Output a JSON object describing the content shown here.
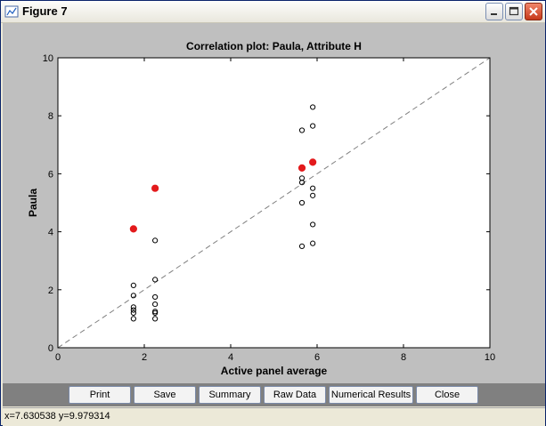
{
  "window": {
    "title": "Figure 7",
    "minimize_label": "minimize",
    "maximize_label": "maximize",
    "close_label": "close"
  },
  "toolbar": {
    "buttons": [
      {
        "label": "Print"
      },
      {
        "label": "Save"
      },
      {
        "label": "Summary"
      },
      {
        "label": "Raw Data"
      },
      {
        "label": "Numerical Results"
      },
      {
        "label": "Close"
      }
    ]
  },
  "status": {
    "coords": "x=7.630538  y=9.979314"
  },
  "chart_data": {
    "type": "scatter",
    "title": "Correlation plot: Paula, Attribute H",
    "xlabel": "Active panel average",
    "ylabel": "Paula",
    "xlim": [
      0,
      10
    ],
    "ylim": [
      0,
      10
    ],
    "xticks": [
      0,
      2,
      4,
      6,
      8,
      10
    ],
    "yticks": [
      0,
      2,
      4,
      6,
      8,
      10
    ],
    "grid": false,
    "diagonal": {
      "from": [
        0,
        0
      ],
      "to": [
        10,
        10
      ],
      "style": "dashed",
      "color": "#808080"
    },
    "series": [
      {
        "marker": "open-circle",
        "color": "#000000",
        "points": [
          [
            1.75,
            2.15
          ],
          [
            1.75,
            1.8
          ],
          [
            1.75,
            1.4
          ],
          [
            1.75,
            1.3
          ],
          [
            1.75,
            1.2
          ],
          [
            1.75,
            1.0
          ],
          [
            2.25,
            3.7
          ],
          [
            2.25,
            2.35
          ],
          [
            2.25,
            1.75
          ],
          [
            2.25,
            1.5
          ],
          [
            2.25,
            1.25
          ],
          [
            2.25,
            1.2
          ],
          [
            2.25,
            1.0
          ],
          [
            5.65,
            7.5
          ],
          [
            5.65,
            5.85
          ],
          [
            5.65,
            5.7
          ],
          [
            5.65,
            5.0
          ],
          [
            5.65,
            3.5
          ],
          [
            5.9,
            8.3
          ],
          [
            5.9,
            7.65
          ],
          [
            5.9,
            5.5
          ],
          [
            5.9,
            5.25
          ],
          [
            5.9,
            4.25
          ],
          [
            5.9,
            3.6
          ]
        ]
      },
      {
        "marker": "filled-circle",
        "color": "#e31a1c",
        "points": [
          [
            1.75,
            4.1
          ],
          [
            2.25,
            5.5
          ],
          [
            5.65,
            6.2
          ],
          [
            5.9,
            6.4
          ]
        ]
      }
    ]
  }
}
